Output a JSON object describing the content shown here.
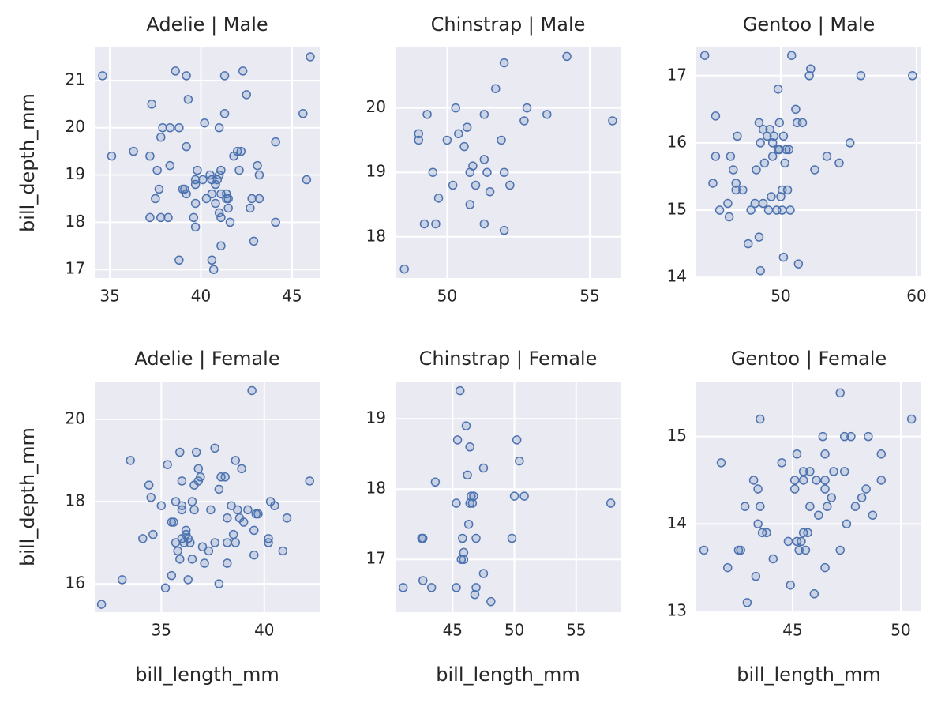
{
  "chart_data": [
    {
      "type": "scatter",
      "title": "Adelie | Male",
      "ylabel": "bill_depth_mm",
      "color": "#4c72b0",
      "grid": true,
      "xlim": [
        34.17,
        46.52
      ],
      "ylim": [
        16.82,
        21.7
      ],
      "xticks": [
        35,
        40,
        45
      ],
      "yticks": [
        17,
        18,
        19,
        20,
        21
      ],
      "x": [
        34.6,
        35.1,
        36.3,
        37.2,
        37.3,
        37.6,
        37.5,
        37.7,
        37.2,
        37.8,
        38.2,
        37.8,
        37.9,
        38.3,
        38.3,
        38.6,
        38.8,
        38.8,
        39.0,
        39.1,
        39.2,
        39.2,
        39.3,
        39.2,
        39.6,
        39.7,
        39.7,
        39.7,
        39.8,
        39.7,
        40.1,
        40.2,
        40.3,
        40.5,
        40.6,
        40.6,
        40.6,
        40.7,
        40.8,
        40.9,
        40.8,
        41.0,
        41.0,
        41.1,
        41.0,
        41.1,
        41.1,
        41.1,
        41.3,
        41.3,
        41.4,
        41.4,
        41.5,
        41.6,
        41.5,
        41.8,
        42.0,
        42.2,
        42.1,
        42.3,
        42.5,
        42.7,
        42.8,
        42.9,
        43.1,
        43.2,
        43.2,
        44.1,
        44.1,
        45.6,
        45.8,
        46.0
      ],
      "values": [
        21.1,
        19.4,
        19.5,
        19.4,
        20.5,
        19.1,
        18.5,
        18.7,
        18.1,
        18.1,
        18.1,
        19.8,
        20.0,
        20.0,
        19.2,
        21.2,
        20.0,
        17.2,
        18.7,
        18.7,
        18.6,
        21.1,
        20.6,
        19.6,
        18.1,
        17.9,
        18.8,
        18.9,
        19.1,
        18.4,
        18.9,
        20.1,
        18.5,
        19.0,
        18.6,
        18.9,
        17.2,
        17.0,
        18.8,
        18.9,
        18.4,
        20.0,
        19.0,
        19.1,
        18.2,
        18.1,
        18.6,
        17.5,
        21.1,
        20.3,
        18.6,
        18.5,
        18.3,
        18.0,
        18.5,
        19.4,
        19.5,
        19.5,
        19.1,
        21.2,
        20.7,
        18.3,
        18.5,
        17.6,
        19.2,
        19.0,
        18.5,
        19.7,
        18.0,
        20.3,
        18.9,
        21.5
      ]
    },
    {
      "type": "scatter",
      "title": "Chinstrap | Male",
      "color": "#4c72b0",
      "grid": true,
      "xlim": [
        48.19,
        56.08
      ],
      "ylim": [
        17.36,
        20.94
      ],
      "xticks": [
        50,
        55
      ],
      "yticks": [
        18,
        19,
        20
      ],
      "x": [
        48.5,
        49.0,
        49.0,
        49.2,
        49.3,
        49.5,
        49.6,
        49.7,
        50.0,
        50.2,
        50.3,
        50.4,
        50.6,
        50.7,
        50.8,
        50.8,
        50.9,
        51.0,
        51.3,
        51.3,
        51.3,
        51.4,
        51.5,
        51.7,
        51.9,
        52.0,
        52.0,
        52.0,
        52.2,
        52.7,
        52.8,
        53.5,
        54.2,
        55.8
      ],
      "values": [
        17.5,
        19.6,
        19.5,
        18.2,
        19.9,
        19.0,
        18.2,
        18.6,
        19.5,
        18.8,
        20.0,
        19.6,
        19.4,
        19.7,
        19.0,
        18.5,
        19.1,
        18.8,
        19.2,
        19.9,
        18.2,
        19.0,
        18.7,
        20.3,
        19.5,
        19.0,
        18.1,
        20.7,
        18.8,
        19.8,
        20.0,
        19.9,
        20.8,
        19.8
      ]
    },
    {
      "type": "scatter",
      "title": "Gentoo | Male",
      "color": "#4c72b0",
      "grid": true,
      "xlim": [
        43.78,
        60.35
      ],
      "ylim": [
        13.99,
        17.42
      ],
      "xticks": [
        50,
        60
      ],
      "yticks": [
        14,
        15,
        16,
        17
      ],
      "x": [
        44.4,
        45.0,
        45.2,
        45.2,
        45.5,
        46.1,
        46.2,
        46.3,
        46.5,
        46.7,
        46.7,
        46.8,
        47.2,
        47.6,
        47.8,
        48.1,
        48.2,
        48.4,
        48.4,
        48.5,
        48.5,
        48.7,
        48.7,
        48.8,
        49.0,
        49.1,
        49.2,
        49.3,
        49.4,
        49.4,
        49.5,
        49.7,
        49.8,
        49.8,
        49.9,
        49.9,
        50.0,
        50.1,
        50.1,
        50.2,
        50.2,
        50.3,
        50.4,
        50.5,
        50.6,
        50.7,
        50.8,
        51.1,
        51.2,
        51.3,
        51.6,
        52.1,
        52.2,
        52.5,
        53.4,
        54.3,
        55.1,
        55.9,
        59.7
      ],
      "values": [
        17.3,
        15.4,
        16.4,
        15.8,
        15.0,
        15.1,
        14.9,
        15.8,
        15.6,
        15.3,
        15.4,
        16.1,
        15.3,
        14.5,
        15.0,
        15.1,
        15.6,
        16.3,
        14.6,
        14.1,
        16.0,
        15.1,
        16.2,
        15.7,
        16.1,
        15.0,
        16.2,
        15.2,
        15.8,
        16.0,
        16.1,
        15.0,
        16.8,
        15.9,
        16.3,
        15.9,
        15.2,
        15.3,
        15.0,
        16.1,
        14.3,
        15.7,
        15.9,
        15.3,
        15.9,
        15.0,
        17.3,
        16.5,
        16.3,
        14.2,
        16.3,
        17.0,
        17.1,
        15.6,
        15.8,
        15.7,
        16.0,
        17.0,
        17.0
      ]
    },
    {
      "type": "scatter",
      "title": "Adelie | Female",
      "xlabel": "bill_length_mm",
      "ylabel": "bill_depth_mm",
      "color": "#4c72b0",
      "grid": true,
      "xlim": [
        31.77,
        42.69
      ],
      "ylim": [
        15.31,
        20.92
      ],
      "xticks": [
        35,
        40
      ],
      "yticks": [
        16,
        18,
        20
      ],
      "x": [
        32.1,
        33.1,
        33.5,
        34.1,
        34.4,
        34.5,
        34.6,
        35.0,
        35.2,
        35.3,
        35.5,
        35.6,
        35.5,
        35.7,
        35.7,
        35.8,
        35.9,
        36.0,
        36.0,
        36.0,
        36.0,
        35.9,
        36.1,
        36.2,
        36.2,
        36.3,
        36.4,
        36.3,
        36.5,
        36.5,
        36.6,
        36.7,
        36.8,
        36.8,
        36.9,
        36.6,
        37.0,
        37.1,
        37.3,
        37.4,
        37.6,
        37.6,
        37.8,
        37.8,
        37.9,
        38.1,
        38.2,
        38.2,
        38.2,
        38.4,
        38.5,
        38.6,
        38.6,
        38.7,
        38.8,
        38.9,
        39.0,
        39.2,
        39.4,
        39.5,
        39.5,
        39.6,
        39.7,
        40.2,
        40.2,
        40.3,
        40.5,
        40.9,
        41.1,
        42.2
      ],
      "values": [
        15.5,
        16.1,
        19.0,
        17.1,
        18.4,
        18.1,
        17.2,
        17.9,
        15.9,
        18.9,
        17.5,
        17.5,
        16.2,
        18.0,
        17.0,
        16.8,
        19.2,
        18.5,
        17.9,
        17.8,
        17.1,
        16.6,
        17.0,
        17.3,
        17.2,
        17.1,
        17.0,
        16.1,
        16.6,
        18.0,
        18.4,
        19.2,
        18.8,
        18.5,
        18.6,
        17.8,
        16.9,
        16.5,
        16.8,
        17.8,
        17.0,
        19.3,
        16.0,
        18.3,
        18.6,
        18.6,
        17.6,
        17.0,
        16.5,
        17.9,
        17.2,
        17.0,
        19.0,
        17.8,
        17.6,
        18.8,
        17.5,
        17.8,
        20.7,
        16.7,
        17.3,
        17.7,
        17.7,
        17.1,
        17.0,
        18.0,
        17.9,
        16.8,
        17.6,
        18.5
      ]
    },
    {
      "type": "scatter",
      "title": "Chinstrap | Female",
      "xlabel": "bill_length_mm",
      "color": "#4c72b0",
      "grid": true,
      "xlim": [
        40.38,
        58.59
      ],
      "ylim": [
        16.25,
        19.53
      ],
      "xticks": [
        45,
        50,
        55
      ],
      "yticks": [
        17,
        18,
        19
      ],
      "x": [
        41.0,
        42.5,
        42.6,
        42.6,
        43.3,
        43.6,
        45.3,
        45.3,
        45.4,
        45.6,
        45.7,
        45.8,
        45.9,
        45.9,
        46.1,
        46.2,
        46.3,
        46.4,
        46.4,
        46.5,
        46.6,
        46.7,
        46.8,
        46.9,
        46.9,
        47.5,
        47.5,
        48.1,
        49.8,
        50.0,
        50.2,
        50.4,
        50.8,
        57.8
      ],
      "values": [
        16.6,
        17.3,
        17.3,
        16.7,
        16.6,
        18.1,
        17.8,
        16.6,
        18.7,
        19.4,
        17.0,
        17.3,
        17.0,
        17.1,
        18.9,
        18.2,
        17.5,
        18.6,
        17.8,
        17.9,
        17.8,
        17.9,
        16.5,
        16.6,
        17.3,
        18.3,
        16.8,
        16.4,
        17.3,
        17.9,
        18.7,
        18.4,
        17.9,
        17.8
      ]
    },
    {
      "type": "scatter",
      "title": "Gentoo | Female",
      "xlabel": "bill_length_mm",
      "color": "#4c72b0",
      "grid": true,
      "xlim": [
        40.55,
        50.95
      ],
      "ylim": [
        12.99,
        15.63
      ],
      "xticks": [
        45,
        50
      ],
      "yticks": [
        13,
        14,
        15
      ],
      "x": [
        40.9,
        41.7,
        42.0,
        42.5,
        42.6,
        42.8,
        42.9,
        43.2,
        43.4,
        43.3,
        43.4,
        43.5,
        43.6,
        43.5,
        43.8,
        44.1,
        44.5,
        44.8,
        44.9,
        45.1,
        45.1,
        45.2,
        45.2,
        45.4,
        45.3,
        45.5,
        45.5,
        45.5,
        45.6,
        45.7,
        45.8,
        45.8,
        46.0,
        46.1,
        46.2,
        46.4,
        46.5,
        46.5,
        46.5,
        46.5,
        46.6,
        46.8,
        46.9,
        47.2,
        47.2,
        47.4,
        47.5,
        47.4,
        47.7,
        47.9,
        48.2,
        48.4,
        48.5,
        48.7,
        49.1,
        49.1,
        50.5
      ],
      "values": [
        13.7,
        14.7,
        13.5,
        13.7,
        13.7,
        14.2,
        13.1,
        14.5,
        14.4,
        13.4,
        14.0,
        14.2,
        13.9,
        15.2,
        13.9,
        13.6,
        14.7,
        13.8,
        13.3,
        14.5,
        14.4,
        14.8,
        13.8,
        13.8,
        13.7,
        13.9,
        14.6,
        14.5,
        13.7,
        13.9,
        14.6,
        14.2,
        13.2,
        14.5,
        14.1,
        15.0,
        14.5,
        14.8,
        14.4,
        13.5,
        14.2,
        14.3,
        14.6,
        15.5,
        13.7,
        14.6,
        14.0,
        15.0,
        15.0,
        14.2,
        14.3,
        14.4,
        15.0,
        14.1,
        14.8,
        14.5,
        15.2
      ]
    }
  ]
}
